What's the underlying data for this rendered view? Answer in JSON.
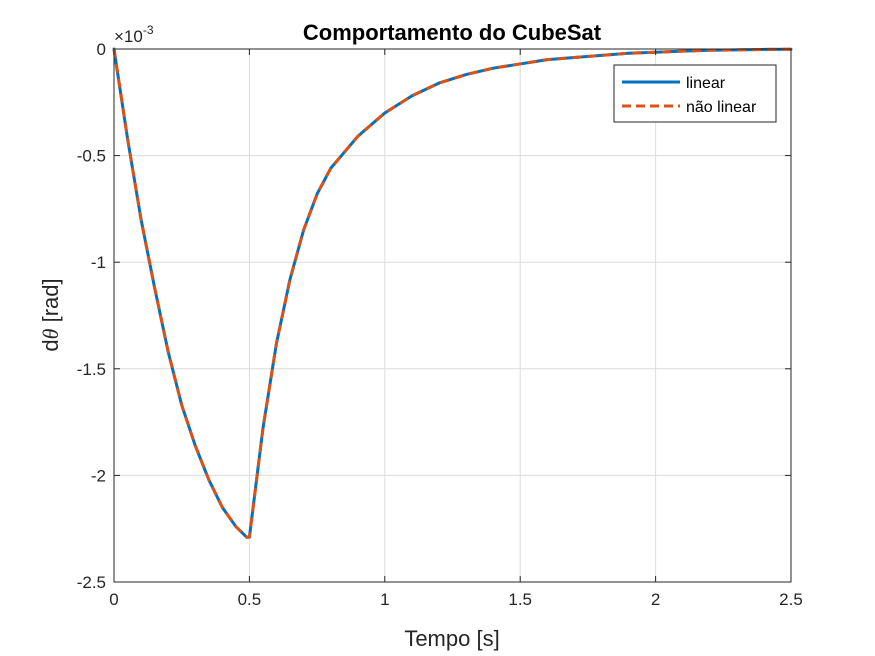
{
  "chart_data": {
    "type": "line",
    "title": "Comportamento do CubeSat",
    "xlabel": "Tempo [s]",
    "ylabel_prefix": "d",
    "ylabel_symbol": "θ",
    "ylabel_suffix": " [rad]",
    "y_exponent_base": "×10",
    "y_exponent_power": "-3",
    "xlim": [
      0,
      2.5
    ],
    "ylim": [
      -2.5,
      0
    ],
    "ylim_scaled": [
      -0.0025,
      0
    ],
    "xticks": [
      0,
      0.5,
      1,
      1.5,
      2,
      2.5
    ],
    "xtick_labels": [
      "0",
      "0.5",
      "1",
      "1.5",
      "2",
      "2.5"
    ],
    "yticks": [
      0,
      -0.5,
      -1,
      -1.5,
      -2,
      -2.5
    ],
    "ytick_labels": [
      "0",
      "-0.5",
      "-1",
      "-1.5",
      "-2",
      "-2.5"
    ],
    "grid": true,
    "legend_position": "top-right",
    "series": [
      {
        "name": "linear",
        "color": "#0072BD",
        "style": "solid",
        "x": [
          0,
          0.05,
          0.1,
          0.15,
          0.2,
          0.25,
          0.3,
          0.35,
          0.4,
          0.45,
          0.49,
          0.5,
          0.55,
          0.6,
          0.65,
          0.7,
          0.75,
          0.8,
          0.9,
          1.0,
          1.1,
          1.2,
          1.3,
          1.4,
          1.5,
          1.6,
          1.7,
          1.8,
          1.9,
          2.0,
          2.1,
          2.2,
          2.3,
          2.4,
          2.5
        ],
        "y": [
          0,
          -0.42,
          -0.8,
          -1.12,
          -1.42,
          -1.67,
          -1.86,
          -2.02,
          -2.15,
          -2.24,
          -2.29,
          -2.29,
          -1.78,
          -1.38,
          -1.08,
          -0.85,
          -0.68,
          -0.56,
          -0.41,
          -0.3,
          -0.22,
          -0.16,
          -0.12,
          -0.09,
          -0.07,
          -0.05,
          -0.04,
          -0.03,
          -0.02,
          -0.015,
          -0.01,
          -0.006,
          -0.004,
          -0.002,
          -0.001
        ]
      },
      {
        "name": "não linear",
        "color": "#D95319",
        "style": "dashed",
        "x": [
          0,
          0.05,
          0.1,
          0.15,
          0.2,
          0.25,
          0.3,
          0.35,
          0.4,
          0.45,
          0.49,
          0.5,
          0.55,
          0.6,
          0.65,
          0.7,
          0.75,
          0.8,
          0.9,
          1.0,
          1.1,
          1.2,
          1.3,
          1.4,
          1.5,
          1.6,
          1.7,
          1.8,
          1.9,
          2.0,
          2.1,
          2.2,
          2.3,
          2.4,
          2.5
        ],
        "y": [
          0,
          -0.42,
          -0.8,
          -1.12,
          -1.42,
          -1.67,
          -1.86,
          -2.02,
          -2.15,
          -2.24,
          -2.29,
          -2.29,
          -1.78,
          -1.38,
          -1.08,
          -0.85,
          -0.68,
          -0.56,
          -0.41,
          -0.3,
          -0.22,
          -0.16,
          -0.12,
          -0.09,
          -0.07,
          -0.05,
          -0.04,
          -0.03,
          -0.02,
          -0.015,
          -0.01,
          -0.006,
          -0.004,
          -0.002,
          -0.001
        ]
      }
    ]
  }
}
